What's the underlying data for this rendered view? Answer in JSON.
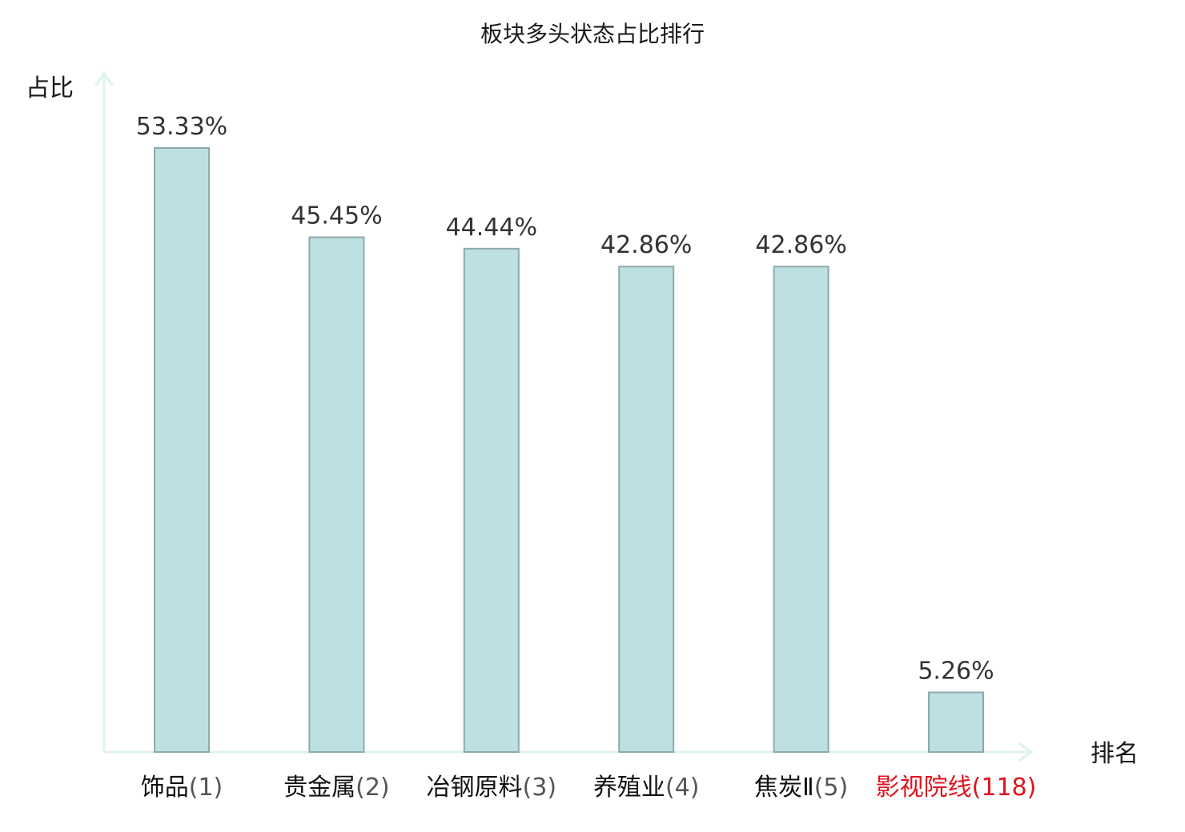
{
  "chart_data": {
    "type": "bar",
    "title": "板块多头状态占比排行",
    "ylabel": "占比",
    "xlabel": "排名",
    "ylim": [
      0,
      60
    ],
    "grid": false,
    "legend": "none",
    "categories": [
      {
        "name": "饰品",
        "rank": "(1)",
        "highlight": false
      },
      {
        "name": "贵金属",
        "rank": "(2)",
        "highlight": false
      },
      {
        "name": "冶钢原料",
        "rank": "(3)",
        "highlight": false
      },
      {
        "name": "养殖业",
        "rank": "(4)",
        "highlight": false
      },
      {
        "name": "焦炭Ⅱ",
        "rank": "(5)",
        "highlight": false
      },
      {
        "name": "影视院线",
        "rank": "(118)",
        "highlight": true
      }
    ],
    "values": [
      53.33,
      45.45,
      44.44,
      42.86,
      42.86,
      5.26
    ],
    "value_labels": [
      "53.33%",
      "45.45%",
      "44.44%",
      "42.86%",
      "42.86%",
      "5.26%"
    ],
    "colors": {
      "bar_fill": "#bde0e3",
      "bar_stroke": "#8fa9ac",
      "axis": "#dff2ef",
      "name_text": "#111111",
      "rank_text": "#555555",
      "highlight_text": "#e0141e"
    }
  }
}
